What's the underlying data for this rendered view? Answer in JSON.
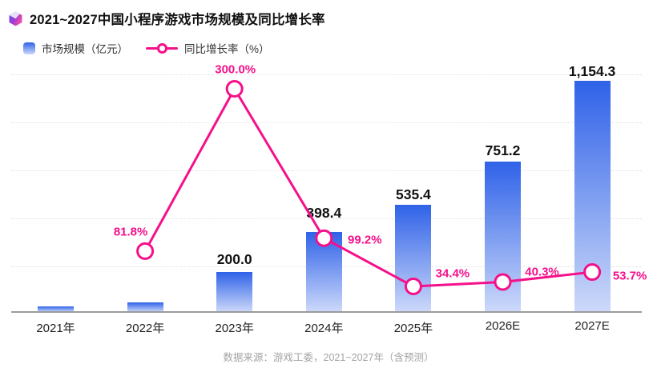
{
  "header": {
    "title": "2021~2027中国小程序游戏市场规模及同比增长率",
    "icon": "gem-icon"
  },
  "legend": {
    "bar_label": "市场规模（亿元）",
    "line_label": "同比增长率（%）"
  },
  "footer": {
    "source": "数据来源：游戏工委，2021~2027年（含预测）"
  },
  "chart_data": {
    "type": "bar+line combo",
    "title": "2021~2027中国小程序游戏市场规模及同比增长率",
    "categories": [
      "2021年",
      "2022年",
      "2023年",
      "2024年",
      "2025年",
      "2026E",
      "2027E"
    ],
    "series": [
      {
        "name": "市场规模（亿元）",
        "type": "bar",
        "values": [
          27.5,
          50,
          200.0,
          398.4,
          535.4,
          751.2,
          1154.3
        ],
        "labels": [
          "",
          "",
          "200.0",
          "398.4",
          "535.4",
          "751.2",
          "1,154.3"
        ]
      },
      {
        "name": "同比增长率（%）",
        "type": "line",
        "values": [
          null,
          81.8,
          300.0,
          99.2,
          34.4,
          40.3,
          53.7
        ],
        "labels": [
          "",
          "81.8%",
          "300.0%",
          "99.2%",
          "34.4%",
          "40.3%",
          "53.7%"
        ]
      }
    ],
    "left_axis": {
      "label": "市场规模（亿元）",
      "range": [
        0,
        1200
      ],
      "gridline_step": 240,
      "tick_labels_visible": false,
      "grid_style": "dashed"
    },
    "right_axis": {
      "label": "同比增长率（%）",
      "range": [
        0,
        320
      ],
      "tick_labels_visible": false
    },
    "legend_position": "top-left",
    "colors": {
      "bar_gradient_top": "#2F62E8",
      "bar_gradient_bottom": "#CDD9FA",
      "line": "#F5108A",
      "bar_value_label": "#111111",
      "axis_line": "#9C9C9C",
      "gridline": "#E5E5E9",
      "footer_text": "#A3A3A3"
    }
  }
}
